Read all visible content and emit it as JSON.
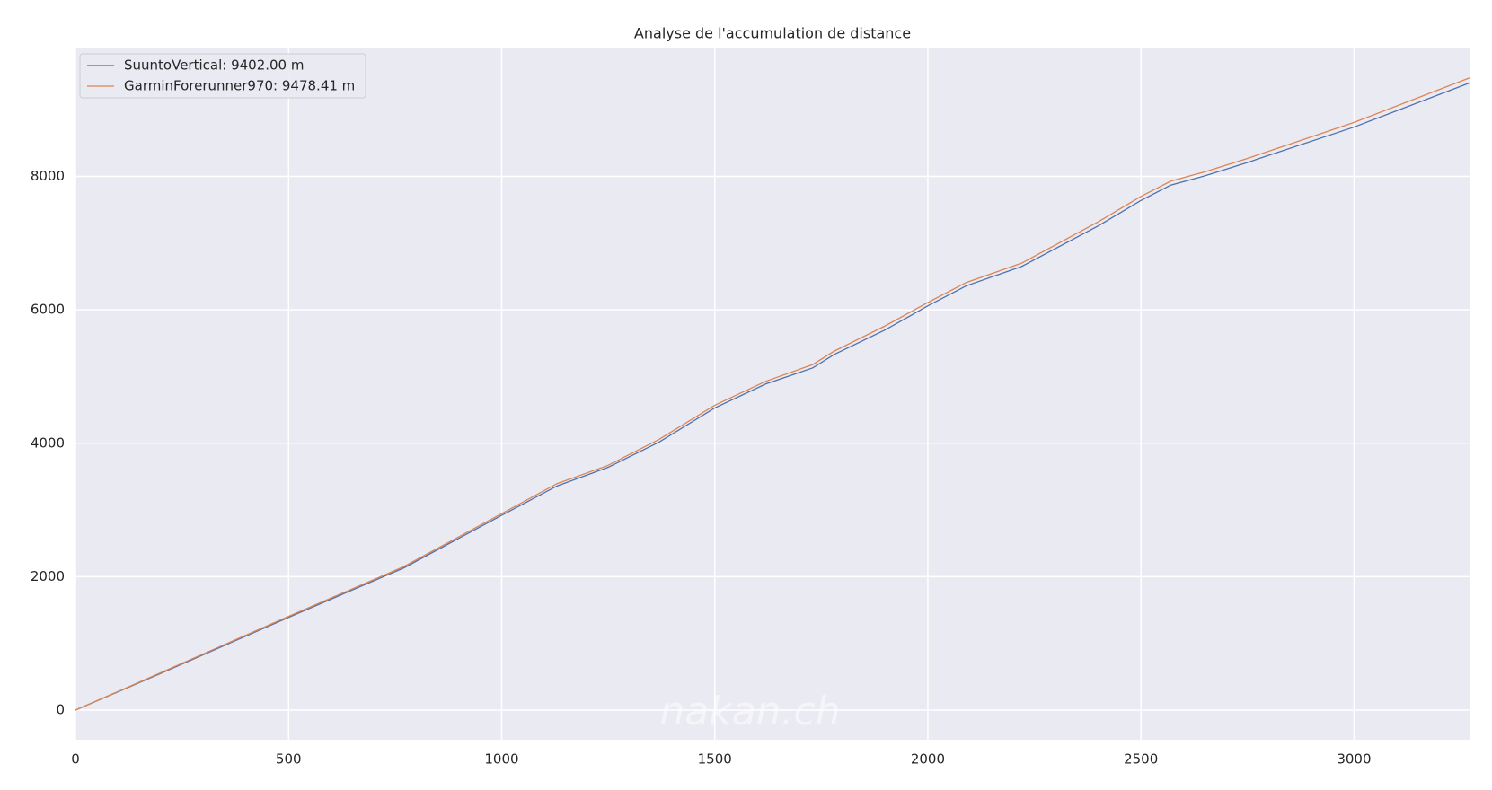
{
  "chart_data": {
    "type": "line",
    "title": "Analyse de l'accumulation de distance",
    "x": [
      0,
      200,
      500,
      770,
      1000,
      1130,
      1250,
      1370,
      1500,
      1620,
      1730,
      1780,
      1900,
      2000,
      2090,
      2220,
      2400,
      2500,
      2570,
      2650,
      2750,
      3000,
      3271
    ],
    "series": [
      {
        "name": "SuuntoVertical: 9402.00 m",
        "color": "#4c72b0",
        "values": [
          0,
          550,
          1390,
          2130,
          2920,
          3360,
          3640,
          4020,
          4530,
          4890,
          5130,
          5330,
          5700,
          6060,
          6360,
          6650,
          7260,
          7640,
          7870,
          8010,
          8210,
          8740,
          9402
        ]
      },
      {
        "name": "GarminForerunner970: 9478.41 m",
        "color": "#dd8452",
        "values": [
          0,
          560,
          1405,
          2150,
          2945,
          3395,
          3670,
          4060,
          4570,
          4930,
          5180,
          5380,
          5760,
          6110,
          6410,
          6700,
          7320,
          7700,
          7930,
          8070,
          8270,
          8810,
          9478
        ]
      }
    ],
    "xlim": [
      0,
      3271
    ],
    "ylim": [
      -444,
      9932
    ],
    "xticks": [
      0,
      500,
      1000,
      1500,
      2000,
      2500,
      3000
    ],
    "yticks": [
      0,
      2000,
      4000,
      6000,
      8000
    ],
    "grid": true,
    "legend": "upper left",
    "watermark": "nakan.ch"
  }
}
